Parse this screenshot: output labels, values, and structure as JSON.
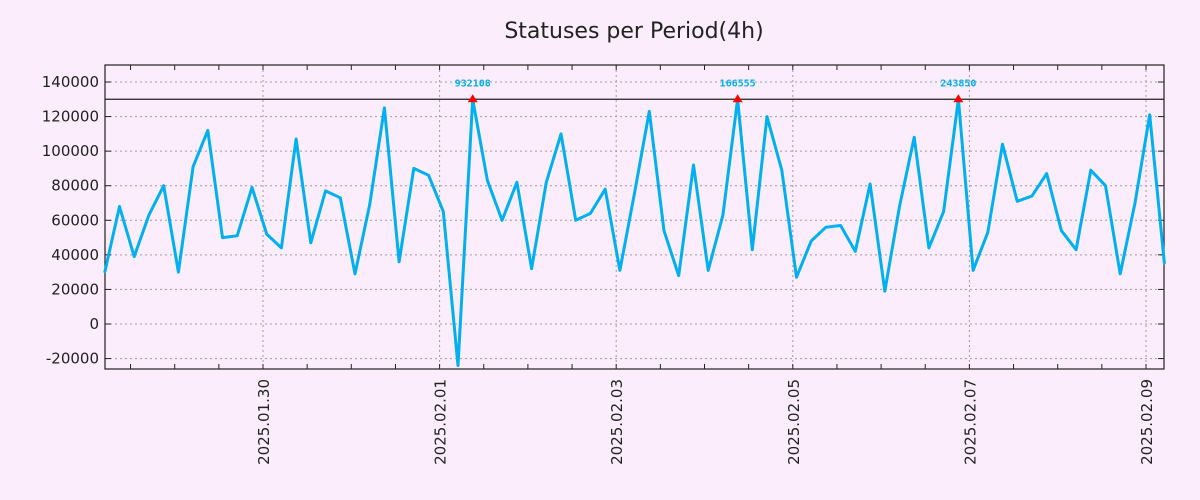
{
  "chart_data": {
    "type": "line",
    "title": "Statuses per Period(4h)",
    "xlabel": "",
    "ylabel": "",
    "x_start": "2025-01-28T05:00",
    "interval_hours": 4,
    "xlim": [
      "2025-01-28T05:00",
      "2025-02-09T05:00"
    ],
    "ylim": [
      -25000,
      150000
    ],
    "grid": true,
    "legend": "none",
    "y_ticks": [
      "-20000",
      "0",
      "20000",
      "40000",
      "60000",
      "80000",
      "100000",
      "120000",
      "140000"
    ],
    "x_ticks": [
      "2025.01.30",
      "2025.02.01",
      "2025.02.03",
      "2025.02.05",
      "2025.02.07",
      "2025.02.09"
    ],
    "threshold": 130000,
    "series": [
      {
        "name": "Statuses",
        "color": "#00b0f0",
        "values": [
          30000,
          68000,
          39000,
          63000,
          80000,
          30000,
          91000,
          112000,
          50000,
          51000,
          79000,
          52000,
          44000,
          107000,
          47000,
          77000,
          73000,
          29000,
          69000,
          125000,
          36000,
          90000,
          86000,
          65000,
          -24000,
          130000,
          83000,
          60000,
          82000,
          32000,
          82000,
          110000,
          60000,
          64000,
          78000,
          31000,
          76000,
          123000,
          54000,
          28000,
          92000,
          31000,
          63000,
          130000,
          43000,
          120000,
          89000,
          27000,
          48000,
          56000,
          57000,
          42000,
          81000,
          19000,
          68000,
          108000,
          44000,
          65000,
          130000,
          31000,
          53000,
          104000,
          71000,
          74000,
          87000,
          54000,
          43000,
          89000,
          80000,
          29000,
          70000,
          121000,
          35000
        ]
      }
    ],
    "annotations": [
      {
        "index": 25,
        "text": "932108"
      },
      {
        "index": 43,
        "text": "166555"
      },
      {
        "index": 58,
        "text": "243850"
      }
    ],
    "marker_color": "#ff0000"
  }
}
